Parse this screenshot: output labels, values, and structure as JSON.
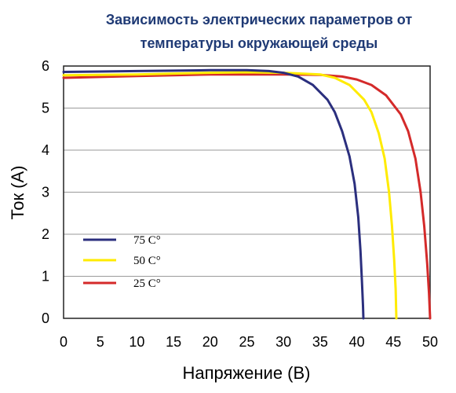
{
  "chart_data": {
    "type": "line",
    "title_line1": "Зависимость электрических параметров от",
    "title_line2": "температуры окружающей среды",
    "xlabel": "Напряжение (В)",
    "ylabel": "Ток (А)",
    "xlim": [
      0,
      50
    ],
    "ylim": [
      0,
      6
    ],
    "xticks": [
      "0",
      "5",
      "10",
      "15",
      "20",
      "25",
      "30",
      "35",
      "40",
      "45",
      "50"
    ],
    "yticks": [
      "0",
      "1",
      "2",
      "3",
      "4",
      "5",
      "6"
    ],
    "grid": "horizontal",
    "legend_position": "lower-left",
    "series": [
      {
        "name": "75 C°",
        "color": "#2b2f7e",
        "points": [
          [
            0,
            5.86
          ],
          [
            5,
            5.87
          ],
          [
            10,
            5.88
          ],
          [
            15,
            5.89
          ],
          [
            20,
            5.9
          ],
          [
            25,
            5.9
          ],
          [
            28,
            5.88
          ],
          [
            30,
            5.84
          ],
          [
            32,
            5.75
          ],
          [
            34,
            5.55
          ],
          [
            36,
            5.2
          ],
          [
            37,
            4.9
          ],
          [
            38,
            4.45
          ],
          [
            39,
            3.85
          ],
          [
            39.7,
            3.2
          ],
          [
            40.2,
            2.4
          ],
          [
            40.5,
            1.6
          ],
          [
            40.7,
            0.9
          ],
          [
            40.85,
            0.3
          ],
          [
            40.9,
            0
          ]
        ]
      },
      {
        "name": "50 C°",
        "color": "#ffeb00",
        "points": [
          [
            0,
            5.78
          ],
          [
            5,
            5.79
          ],
          [
            10,
            5.8
          ],
          [
            15,
            5.82
          ],
          [
            20,
            5.84
          ],
          [
            25,
            5.85
          ],
          [
            30,
            5.84
          ],
          [
            35,
            5.8
          ],
          [
            37,
            5.72
          ],
          [
            39,
            5.55
          ],
          [
            41,
            5.2
          ],
          [
            42,
            4.9
          ],
          [
            43,
            4.4
          ],
          [
            43.8,
            3.8
          ],
          [
            44.4,
            3.0
          ],
          [
            44.8,
            2.2
          ],
          [
            45.1,
            1.4
          ],
          [
            45.3,
            0.7
          ],
          [
            45.4,
            0
          ]
        ]
      },
      {
        "name": "25 C°",
        "color": "#d42a2a",
        "points": [
          [
            0,
            5.72
          ],
          [
            5,
            5.74
          ],
          [
            10,
            5.76
          ],
          [
            15,
            5.78
          ],
          [
            20,
            5.8
          ],
          [
            25,
            5.8
          ],
          [
            30,
            5.8
          ],
          [
            35,
            5.79
          ],
          [
            38,
            5.75
          ],
          [
            40,
            5.68
          ],
          [
            42,
            5.55
          ],
          [
            44,
            5.3
          ],
          [
            46,
            4.85
          ],
          [
            47,
            4.45
          ],
          [
            48,
            3.8
          ],
          [
            48.7,
            3.0
          ],
          [
            49.2,
            2.2
          ],
          [
            49.6,
            1.3
          ],
          [
            49.85,
            0.6
          ],
          [
            50,
            0
          ]
        ]
      }
    ]
  }
}
